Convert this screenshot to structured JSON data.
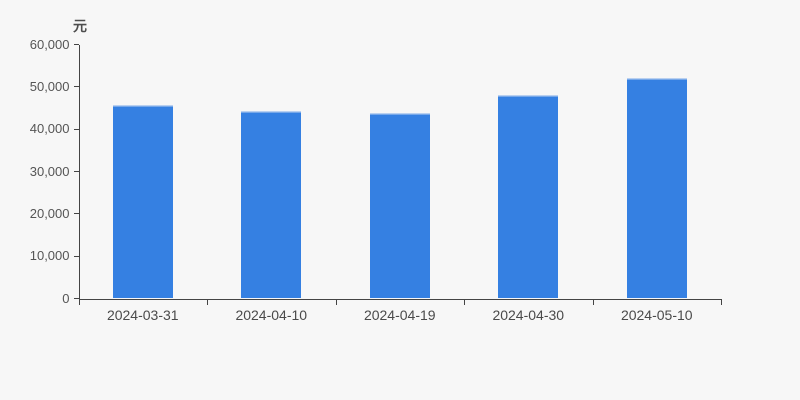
{
  "page": {
    "background": "#f7f7f7"
  },
  "chart_data": {
    "type": "bar",
    "title": "",
    "unit_label": "元",
    "categories": [
      "2024-03-31",
      "2024-04-10",
      "2024-04-19",
      "2024-04-30",
      "2024-05-10"
    ],
    "values": [
      45600,
      44200,
      43900,
      48100,
      52100
    ],
    "xlabel": "",
    "ylabel": "元",
    "ylim": [
      0,
      60000
    ],
    "y_ticks": [
      0,
      10000,
      20000,
      30000,
      40000,
      50000,
      60000
    ],
    "y_tick_labels": [
      "0",
      "10,000",
      "20,000",
      "30,000",
      "40,000",
      "50,000",
      "60,000"
    ],
    "grid": false,
    "legend": false,
    "bar_color": "#3580e2",
    "bar_top_highlight": "#b9d0f0",
    "axis_color": "#444444",
    "tick_text_color": "#555555"
  }
}
